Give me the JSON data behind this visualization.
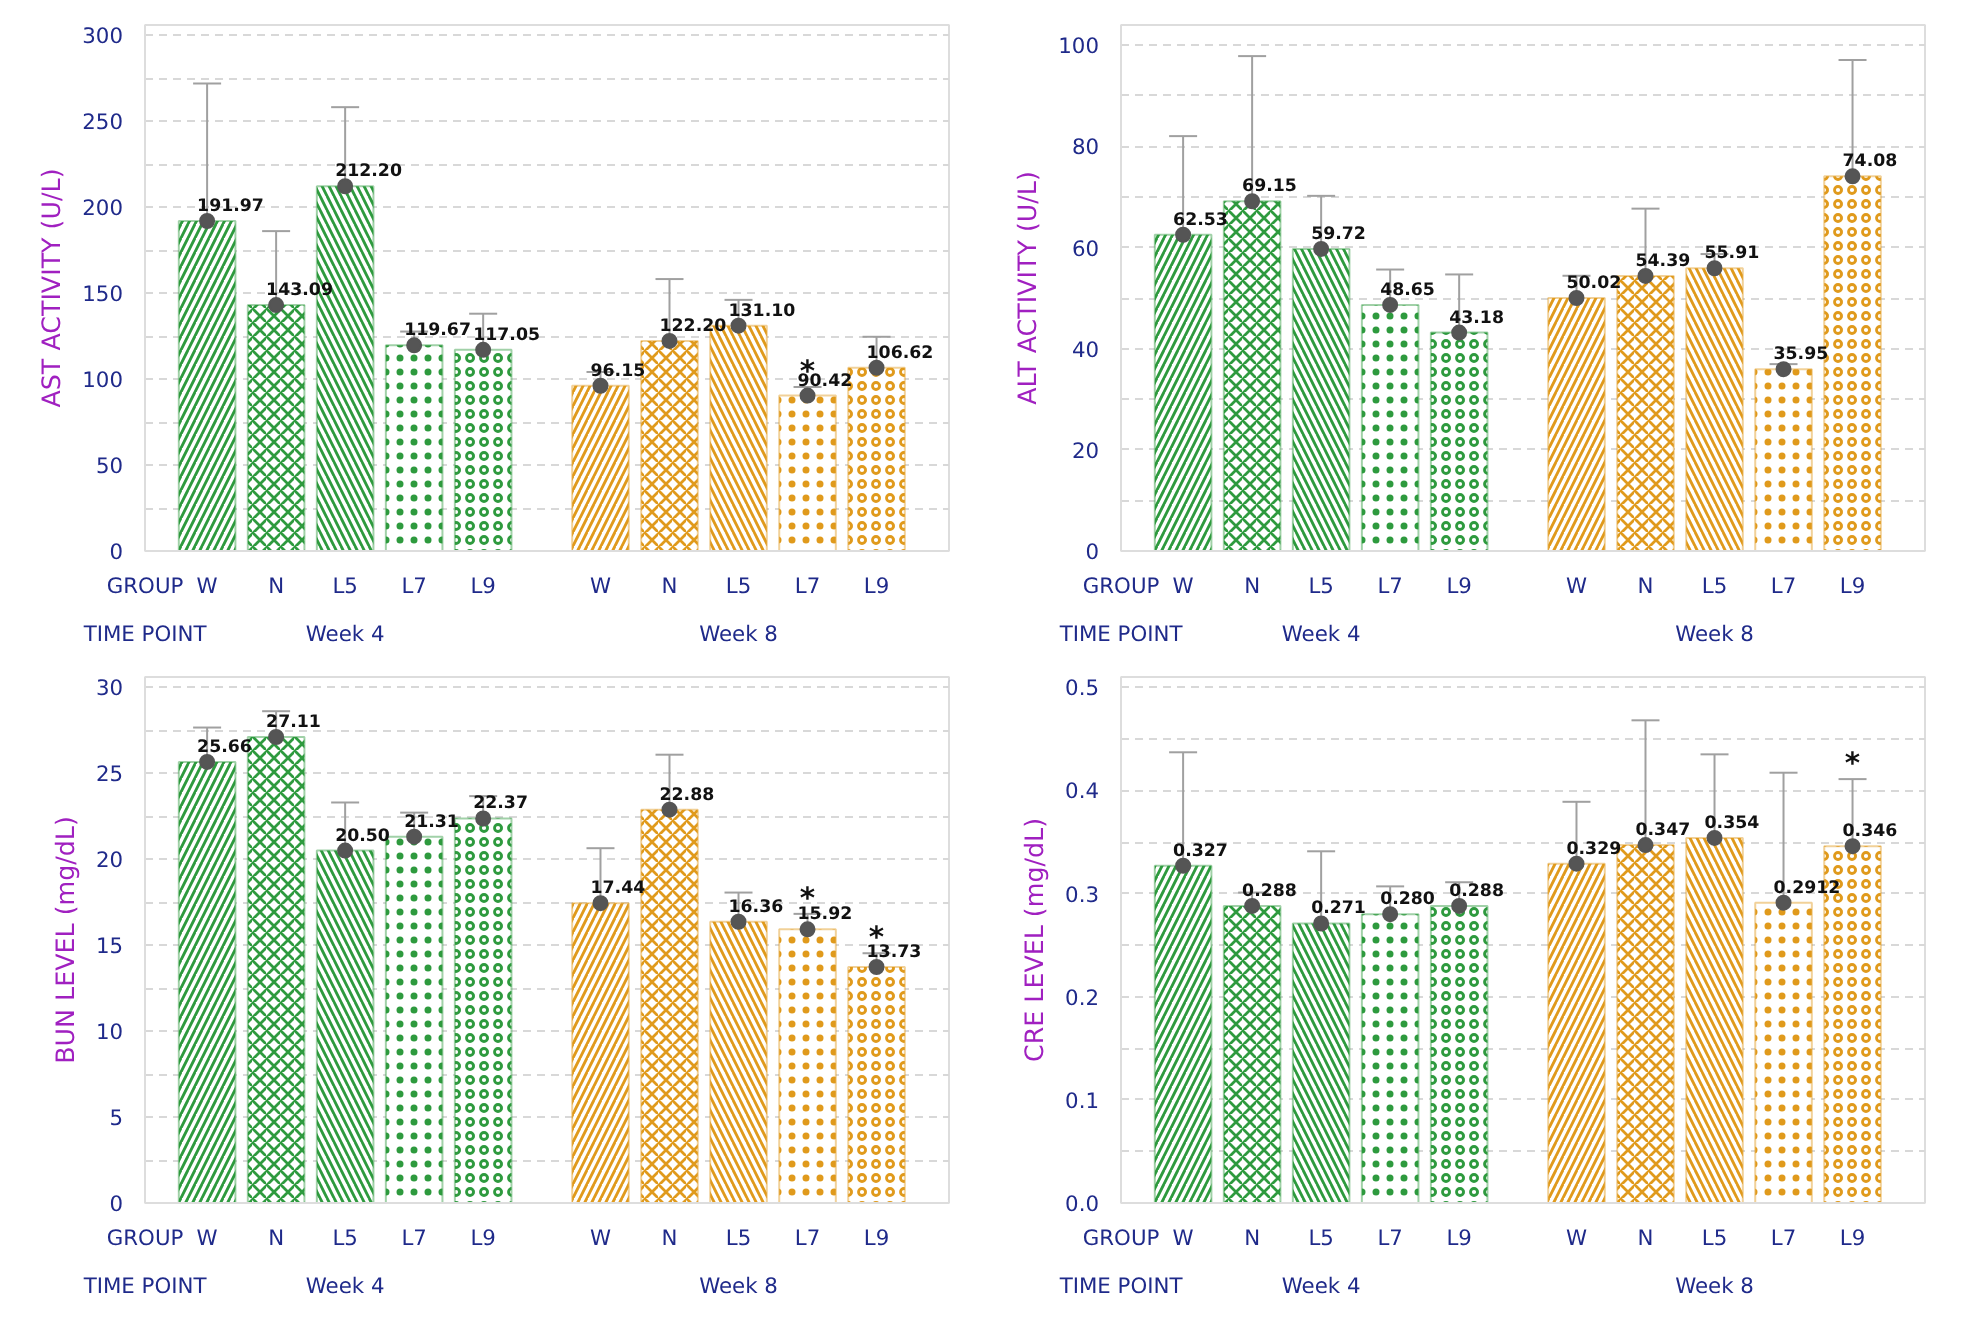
{
  "chart_data": [
    {
      "type": "bar",
      "ylabel": "AST ACTIVITY (U/L)",
      "categories": [
        "W",
        "N",
        "L5",
        "L7",
        "L9",
        "W",
        "N",
        "L5",
        "L7",
        "L9"
      ],
      "series": [
        {
          "type": "bar",
          "values": [
            191.97,
            143.09,
            212.2,
            119.67,
            117.05,
            96.15,
            122.2,
            131.1,
            90.42,
            106.62
          ],
          "value_labels": [
            "191.97",
            "143.09",
            "212.20",
            "119.67",
            "117.05",
            "96.15",
            "122.20",
            "131.10",
            "90.42",
            "106.62"
          ],
          "errors": [
            80,
            43,
            46,
            8,
            21,
            8,
            36,
            15,
            5,
            18
          ],
          "colors": [
            "#2e9a3e",
            "#2e9a3e",
            "#2e9a3e",
            "#2e9a3e",
            "#2e9a3e",
            "#e09a1c",
            "#e09a1c",
            "#e09a1c",
            "#e09a1c",
            "#e09a1c"
          ]
        },
        {
          "type": "scatter",
          "marker": "circle",
          "color": "#555555",
          "values": [
            191.97,
            143.09,
            212.2,
            119.67,
            117.05,
            96.15,
            122.2,
            131.1,
            90.42,
            106.62
          ],
          "value_labels": [
            null,
            null,
            null,
            null,
            null,
            null,
            null,
            null,
            "*",
            null
          ]
        }
      ],
      "ylim": [
        0,
        306
      ],
      "yticks": [
        0,
        {
          "value": 25,
          "label": null
        },
        50,
        {
          "value": 75,
          "label": null
        },
        100,
        {
          "value": 125,
          "label": null
        },
        150,
        {
          "value": 175,
          "label": null
        },
        200,
        {
          "value": 225,
          "label": null
        },
        250,
        {
          "value": 275,
          "label": null
        },
        300
      ],
      "grid": "y",
      "annotations": [
        "GROUP",
        "TIME POINT",
        "Week 4",
        "Week 8"
      ]
    },
    {
      "type": "bar",
      "ylabel": "ALT ACTIVITY (U/L)",
      "categories": [
        "W",
        "N",
        "L5",
        "L7",
        "L9",
        "W",
        "N",
        "L5",
        "L7",
        "L9"
      ],
      "series": [
        {
          "type": "bar",
          "values": [
            62.53,
            69.15,
            59.72,
            48.65,
            43.18,
            50.02,
            54.39,
            55.91,
            35.95,
            74.08
          ],
          "value_labels": [
            "62.53",
            "69.15",
            "59.72",
            "48.65",
            "43.18",
            "50.02",
            "54.39",
            "55.91",
            "35.95",
            "74.08"
          ],
          "errors": [
            19.5,
            28.7,
            10.5,
            7,
            11.5,
            4.4,
            13.3,
            2.8,
            1,
            23
          ],
          "colors": [
            "#2e9a3e",
            "#2e9a3e",
            "#2e9a3e",
            "#2e9a3e",
            "#2e9a3e",
            "#e09a1c",
            "#e09a1c",
            "#e09a1c",
            "#e09a1c",
            "#e09a1c"
          ]
        },
        {
          "type": "scatter",
          "marker": "circle",
          "color": "#555555",
          "values": [
            62.53,
            69.15,
            59.72,
            48.65,
            43.18,
            50.02,
            54.39,
            55.91,
            35.95,
            74.08
          ]
        }
      ],
      "ylim": [
        0,
        104
      ],
      "yticks": [
        0,
        {
          "value": 10,
          "label": null
        },
        20,
        {
          "value": 30,
          "label": null
        },
        40,
        {
          "value": 50,
          "label": null
        },
        60,
        {
          "value": 70,
          "label": null
        },
        80,
        {
          "value": 90,
          "label": null
        },
        100
      ],
      "grid": "y",
      "annotations": [
        "GROUP",
        "TIME POINT",
        "Week 4",
        "Week 8"
      ]
    },
    {
      "type": "bar",
      "ylabel": "BUN LEVEL (mg/dL)",
      "categories": [
        "W",
        "N",
        "L5",
        "L7",
        "L9",
        "W",
        "N",
        "L5",
        "L7",
        "L9"
      ],
      "series": [
        {
          "type": "bar",
          "values": [
            25.66,
            27.11,
            20.5,
            21.31,
            22.37,
            17.44,
            22.88,
            16.36,
            15.92,
            13.73
          ],
          "value_labels": [
            "25.66",
            "27.11",
            "20.50",
            "21.31",
            "22.37",
            "17.44",
            "22.88",
            "16.36",
            "15.92",
            "13.73"
          ],
          "errors": [
            2,
            1.5,
            2.8,
            1.4,
            1.3,
            3.2,
            3.2,
            1.7,
            0.9,
            0.8
          ],
          "colors": [
            "#2e9a3e",
            "#2e9a3e",
            "#2e9a3e",
            "#2e9a3e",
            "#2e9a3e",
            "#e09a1c",
            "#e09a1c",
            "#e09a1c",
            "#e09a1c",
            "#e09a1c"
          ]
        },
        {
          "type": "scatter",
          "marker": "circle",
          "color": "#555555",
          "values": [
            25.66,
            27.11,
            20.5,
            21.31,
            22.37,
            17.44,
            22.88,
            16.36,
            15.92,
            13.73
          ],
          "value_labels": [
            null,
            null,
            null,
            null,
            null,
            null,
            null,
            null,
            "*",
            "*"
          ]
        }
      ],
      "ylim": [
        0,
        30.6
      ],
      "yticks": [
        0,
        {
          "value": 2.5,
          "label": null
        },
        5,
        {
          "value": 7.5,
          "label": null
        },
        10,
        {
          "value": 12.5,
          "label": null
        },
        15,
        {
          "value": 17.5,
          "label": null
        },
        20,
        {
          "value": 22.5,
          "label": null
        },
        25,
        {
          "value": 27.5,
          "label": null
        },
        30
      ],
      "grid": "y",
      "annotations": [
        "GROUP",
        "TIME POINT",
        "Week 4",
        "Week 8"
      ]
    },
    {
      "type": "bar",
      "ylabel": "CRE LEVEL (mg/dL)",
      "categories": [
        "W",
        "N",
        "L5",
        "L7",
        "L9",
        "W",
        "N",
        "L5",
        "L7",
        "L9"
      ],
      "series": [
        {
          "type": "bar",
          "values": [
            0.327,
            0.288,
            0.271,
            0.28,
            0.288,
            0.329,
            0.347,
            0.354,
            0.2912,
            0.346
          ],
          "value_labels": [
            "0.327",
            "0.288",
            "0.271",
            "0.280",
            "0.288",
            "0.329",
            "0.347",
            "0.354",
            "0.2912",
            "0.346"
          ],
          "errors": [
            0.11,
            0.013,
            0.07,
            0.027,
            0.023,
            0.06,
            0.121,
            0.081,
            0.126,
            0.065
          ],
          "colors": [
            "#2e9a3e",
            "#2e9a3e",
            "#2e9a3e",
            "#2e9a3e",
            "#2e9a3e",
            "#e09a1c",
            "#e09a1c",
            "#e09a1c",
            "#e09a1c",
            "#e09a1c"
          ]
        },
        {
          "type": "scatter",
          "marker": "circle",
          "color": "#555555",
          "values": [
            0.327,
            0.288,
            0.271,
            0.28,
            0.288,
            0.329,
            0.347,
            0.354,
            0.2912,
            0.346
          ],
          "value_labels": [
            null,
            null,
            null,
            null,
            null,
            null,
            null,
            null,
            null,
            "*"
          ]
        }
      ],
      "ylim": [
        0,
        0.51
      ],
      "yticks": [
        {
          "value": 0,
          "label": "0.0"
        },
        {
          "value": 0.05,
          "label": null
        },
        0.1,
        {
          "value": 0.15,
          "label": null
        },
        0.2,
        {
          "value": 0.25,
          "label": null
        },
        0.3,
        {
          "value": 0.35,
          "label": null
        },
        0.4,
        {
          "value": 0.45,
          "label": null
        },
        0.5
      ],
      "grid": "y",
      "annotations": [
        "GROUP",
        "TIME POINT",
        "Week 4",
        "Week 8"
      ]
    }
  ]
}
